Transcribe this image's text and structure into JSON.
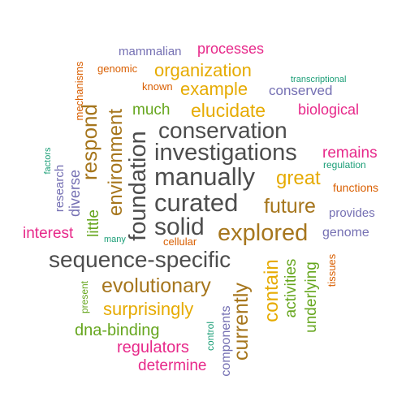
{
  "word_cloud": {
    "palette": {
      "gray": "#4d4d4d",
      "orange": "#d95f02",
      "purple": "#7570b3",
      "magenta": "#e7298a",
      "green": "#66a61e",
      "gold": "#e6ab02",
      "brown": "#a6761d",
      "teal": "#1b9e77"
    },
    "words": [
      {
        "text": "mammalian",
        "color": "purple"
      },
      {
        "text": "processes",
        "color": "magenta"
      },
      {
        "text": "mechanisms",
        "color": "orange"
      },
      {
        "text": "genomic",
        "color": "orange"
      },
      {
        "text": "organization",
        "color": "gold"
      },
      {
        "text": "transcriptional",
        "color": "teal"
      },
      {
        "text": "known",
        "color": "orange"
      },
      {
        "text": "example",
        "color": "gold"
      },
      {
        "text": "conserved",
        "color": "purple"
      },
      {
        "text": "research",
        "color": "purple"
      },
      {
        "text": "respond",
        "color": "brown"
      },
      {
        "text": "environment",
        "color": "brown"
      },
      {
        "text": "much",
        "color": "green"
      },
      {
        "text": "elucidate",
        "color": "gold"
      },
      {
        "text": "biological",
        "color": "magenta"
      },
      {
        "text": "foundation",
        "color": "gray"
      },
      {
        "text": "conservation",
        "color": "gray"
      },
      {
        "text": "factors",
        "color": "teal"
      },
      {
        "text": "investigations",
        "color": "gray"
      },
      {
        "text": "remains",
        "color": "magenta"
      },
      {
        "text": "regulation",
        "color": "teal"
      },
      {
        "text": "diverse",
        "color": "purple"
      },
      {
        "text": "manually",
        "color": "gray"
      },
      {
        "text": "great",
        "color": "gold"
      },
      {
        "text": "functions",
        "color": "orange"
      },
      {
        "text": "little",
        "color": "green"
      },
      {
        "text": "curated",
        "color": "gray"
      },
      {
        "text": "future",
        "color": "brown"
      },
      {
        "text": "provides",
        "color": "purple"
      },
      {
        "text": "interest",
        "color": "magenta"
      },
      {
        "text": "many",
        "color": "teal"
      },
      {
        "text": "solid",
        "color": "gray"
      },
      {
        "text": "explored",
        "color": "brown"
      },
      {
        "text": "genome",
        "color": "purple"
      },
      {
        "text": "cellular",
        "color": "orange"
      },
      {
        "text": "sequence-specific",
        "color": "gray"
      },
      {
        "text": "tissues",
        "color": "orange"
      },
      {
        "text": "contain",
        "color": "gold"
      },
      {
        "text": "activities",
        "color": "green"
      },
      {
        "text": "underlying",
        "color": "green"
      },
      {
        "text": "present",
        "color": "green"
      },
      {
        "text": "evolutionary",
        "color": "brown"
      },
      {
        "text": "surprisingly",
        "color": "gold"
      },
      {
        "text": "currently",
        "color": "brown"
      },
      {
        "text": "components",
        "color": "purple"
      },
      {
        "text": "control",
        "color": "teal"
      },
      {
        "text": "dna-binding",
        "color": "green"
      },
      {
        "text": "regulators",
        "color": "magenta"
      },
      {
        "text": "determine",
        "color": "magenta"
      }
    ]
  }
}
